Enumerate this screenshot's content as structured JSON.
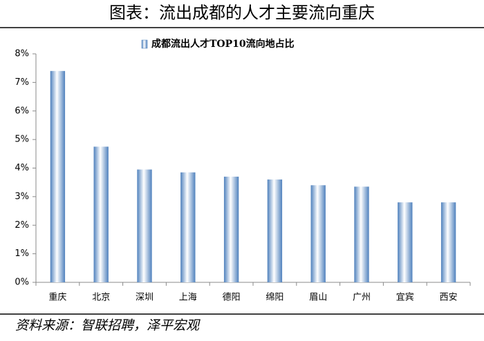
{
  "chart_data": {
    "type": "bar",
    "title": "图表：流出成都的人才主要流向重庆",
    "source": "资料来源：智联招聘，泽平宏观",
    "categories": [
      "重庆",
      "北京",
      "深圳",
      "上海",
      "德阳",
      "绵阳",
      "眉山",
      "广州",
      "宜宾",
      "西安"
    ],
    "series": [
      {
        "name": "成都流出人才TOP10流向地占比",
        "color": "#4f81bd",
        "values": [
          7.4,
          4.75,
          3.95,
          3.85,
          3.7,
          3.6,
          3.4,
          3.35,
          2.8,
          2.8
        ]
      }
    ],
    "ylim": [
      0,
      8
    ],
    "yticks": [
      {
        "value": 0,
        "label": "0%"
      },
      {
        "value": 1,
        "label": "1%"
      },
      {
        "value": 2,
        "label": "2%"
      },
      {
        "value": 3,
        "label": "3%"
      },
      {
        "value": 4,
        "label": "4%"
      },
      {
        "value": 5,
        "label": "5%"
      },
      {
        "value": 6,
        "label": "6%"
      },
      {
        "value": 7,
        "label": "7%"
      },
      {
        "value": 8,
        "label": "8%"
      }
    ],
    "grid": false,
    "legend": "top"
  }
}
